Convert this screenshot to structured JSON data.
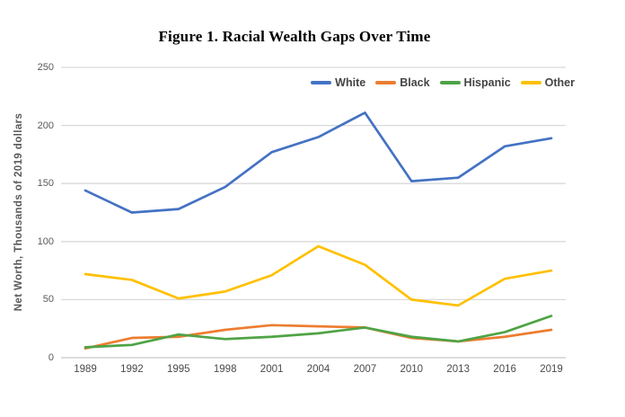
{
  "figure": {
    "title": "Figure 1. Racial Wealth Gaps Over Time",
    "y_axis_title": "Net Worth, Thousands of 2019 dollars"
  },
  "colors": {
    "white_series": "#4472C4",
    "black_series": "#ED7D31",
    "hispanic_series": "#4FA345",
    "other_series": "#FFC000",
    "gridline": "#D9D9D9",
    "axis_line": "#C8C8C8",
    "tick_text": "#595959",
    "legend_text": "#444444"
  },
  "chart_data": {
    "type": "line",
    "title": "Figure 1. Racial Wealth Gaps Over Time",
    "xlabel": "",
    "ylabel": "Net Worth, Thousands of 2019 dollars",
    "categories": [
      "1989",
      "1992",
      "1995",
      "1998",
      "2001",
      "2004",
      "2007",
      "2010",
      "2013",
      "2016",
      "2019"
    ],
    "series": [
      {
        "name": "White",
        "color": "#4472C4",
        "values": [
          144,
          125,
          128,
          147,
          177,
          190,
          211,
          152,
          155,
          182,
          189
        ]
      },
      {
        "name": "Black",
        "color": "#ED7D31",
        "values": [
          8,
          17,
          18,
          24,
          28,
          27,
          26,
          17,
          14,
          18,
          24
        ]
      },
      {
        "name": "Hispanic",
        "color": "#4FA345",
        "values": [
          9,
          11,
          20,
          16,
          18,
          21,
          26,
          18,
          14,
          22,
          36
        ]
      },
      {
        "name": "Other",
        "color": "#FFC000",
        "values": [
          72,
          67,
          51,
          57,
          71,
          96,
          80,
          50,
          45,
          68,
          75
        ]
      }
    ],
    "ylim": [
      0,
      250
    ],
    "yticks": [
      0,
      50,
      100,
      150,
      200,
      250
    ],
    "grid": true,
    "legend_position": "top-right"
  }
}
